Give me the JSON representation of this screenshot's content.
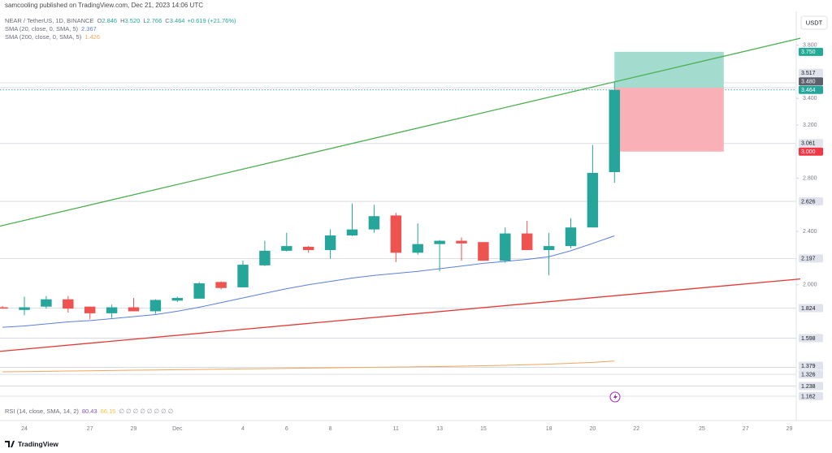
{
  "header": {
    "publisher": "samcooling published on TradingView.com, Dec 21, 2023 14:06 UTC"
  },
  "chart_data": {
    "type": "candlestick",
    "symbol": "NEAR / TetherUS, 1D, BINANCE",
    "readout": {
      "keys": [
        "O",
        "H",
        "L",
        "C"
      ],
      "texts": [
        "2.846",
        "3.520",
        "2.766",
        "3.464"
      ],
      "change": "+0.619 (+21.76%)"
    },
    "currency": "USDT",
    "categories": [
      null,
      "24",
      null,
      null,
      "27",
      null,
      "29",
      null,
      "Dec",
      null,
      null,
      "4",
      null,
      "6",
      null,
      "8",
      null,
      null,
      "11",
      null,
      "13",
      null,
      "15",
      null,
      null,
      "18",
      null,
      "20",
      null,
      "22",
      null,
      null,
      "25",
      null,
      "27",
      null,
      "29"
    ],
    "open": [
      1.83,
      1.81,
      1.835,
      1.89,
      1.835,
      1.785,
      1.83,
      1.8,
      1.88,
      1.895,
      2.02,
      1.98,
      2.145,
      2.255,
      2.285,
      2.26,
      2.37,
      2.415,
      2.52,
      2.24,
      2.305,
      2.33,
      2.32,
      2.18,
      2.385,
      2.26,
      2.29,
      2.43,
      2.846,
      null,
      null,
      null,
      null,
      null,
      null,
      null,
      null
    ],
    "high": [
      1.84,
      1.91,
      1.915,
      1.915,
      1.835,
      1.85,
      1.9,
      1.89,
      1.91,
      2.02,
      2.025,
      2.18,
      2.33,
      2.39,
      2.29,
      2.415,
      2.61,
      2.6,
      2.54,
      2.46,
      2.335,
      2.355,
      2.32,
      2.43,
      2.48,
      2.39,
      2.5,
      3.05,
      3.52,
      null,
      null,
      null,
      null,
      null,
      null,
      null,
      null
    ],
    "low": [
      1.82,
      1.77,
      1.82,
      1.79,
      1.74,
      1.75,
      1.8,
      1.78,
      1.87,
      1.895,
      1.965,
      1.98,
      2.14,
      2.25,
      2.24,
      2.195,
      2.365,
      2.39,
      2.17,
      2.225,
      2.1,
      2.18,
      2.18,
      2.165,
      2.26,
      2.07,
      2.275,
      2.43,
      2.766,
      null,
      null,
      null,
      null,
      null,
      null,
      null,
      null
    ],
    "close": [
      1.82,
      1.83,
      1.89,
      1.82,
      1.785,
      1.83,
      1.8,
      1.885,
      1.9,
      2.01,
      1.975,
      2.15,
      2.255,
      2.29,
      2.26,
      2.37,
      2.415,
      2.515,
      2.24,
      2.305,
      2.33,
      2.31,
      2.18,
      2.385,
      2.26,
      2.29,
      2.43,
      2.84,
      3.464,
      null,
      null,
      null,
      null,
      null,
      null,
      null,
      null
    ],
    "colors": {
      "up": "#26a69a",
      "down": "#ef5350"
    },
    "series": [
      {
        "name": "SMA (20, close, 0, SMA, 5)",
        "color": "#5b7fde",
        "last": 2.367,
        "values": [
          1.68,
          1.69,
          1.705,
          1.72,
          1.73,
          1.745,
          1.76,
          1.775,
          1.8,
          1.83,
          1.865,
          1.9,
          1.935,
          1.97,
          2.0,
          2.025,
          2.05,
          2.07,
          2.085,
          2.1,
          2.12,
          2.14,
          2.16,
          2.175,
          2.19,
          2.21,
          2.255,
          2.31,
          2.367,
          null,
          null,
          null,
          null,
          null,
          null,
          null,
          null
        ]
      },
      {
        "name": "SMA (200, close, 0, SMA, 5)",
        "color": "#f5a35a",
        "last": 1.426,
        "values": [
          1.345,
          1.347,
          1.349,
          1.351,
          1.353,
          1.355,
          1.357,
          1.359,
          1.361,
          1.363,
          1.365,
          1.367,
          1.369,
          1.371,
          1.373,
          1.375,
          1.377,
          1.379,
          1.381,
          1.383,
          1.385,
          1.388,
          1.391,
          1.394,
          1.398,
          1.403,
          1.409,
          1.416,
          1.426,
          null,
          null,
          null,
          null,
          null,
          null,
          null,
          null
        ]
      }
    ],
    "rsi": {
      "name": "RSI (14, close, SMA, 14, 2)",
      "values": [
        80.43,
        66.15
      ],
      "colors": [
        "#7e57c2",
        "#f5c242"
      ],
      "extra": "∅ ∅ ∅ ∅ ∅ ∅ ∅ ∅"
    },
    "ylim": [
      0.979,
      4.054
    ],
    "yticks": [
      {
        "value": 3.8,
        "label": "3.800"
      },
      {
        "value": 3.4,
        "label": "3.400"
      },
      {
        "value": 3.2,
        "label": "3.200"
      },
      {
        "value": 2.8,
        "label": "2.800"
      },
      {
        "value": 2.4,
        "label": "2.400"
      },
      {
        "value": 2.0,
        "label": "2.000"
      }
    ],
    "trendlines": [
      {
        "color": "#4caf50",
        "values": [
          2.44,
          3.852
        ]
      },
      {
        "color": "#e53935",
        "values": [
          1.499,
          2.043
        ]
      }
    ],
    "position": {
      "entry": 3.48,
      "target": 3.75,
      "stop": 3.0,
      "colors": [
        "#a3dccf",
        "#f9b0b6"
      ]
    },
    "price_labels": [
      {
        "value": 3.75,
        "label": "3.750",
        "bg": "#22ab94",
        "fg": "#ffffff",
        "line": "none"
      },
      {
        "value": 3.517,
        "label": "3.517",
        "bg": "#e0e3eb",
        "fg": "#131722",
        "line": "solid"
      },
      {
        "value": 3.48,
        "label": "3.480",
        "bg": "#5d606b",
        "fg": "#ffffff",
        "line": "solid"
      },
      {
        "value": 3.464,
        "label": "3.464",
        "bg": "#26a69a",
        "fg": "#ffffff",
        "line": "dotted"
      },
      {
        "value": 3.061,
        "label": "3.061",
        "bg": "#e0e3eb",
        "fg": "#131722",
        "line": "solid"
      },
      {
        "value": 3.0,
        "label": "3.000",
        "bg": "#f23645",
        "fg": "#ffffff",
        "line": "none"
      },
      {
        "value": 2.626,
        "label": "2.626",
        "bg": "#e0e3eb",
        "fg": "#131722",
        "line": "solid"
      },
      {
        "value": 2.197,
        "label": "2.197",
        "bg": "#e0e3eb",
        "fg": "#131722",
        "line": "solid"
      },
      {
        "value": 1.824,
        "label": "1.824",
        "bg": "#e0e3eb",
        "fg": "#131722",
        "line": "solid"
      },
      {
        "value": 1.598,
        "label": "1.598",
        "bg": "#e0e3eb",
        "fg": "#131722",
        "line": "solid"
      },
      {
        "value": 1.379,
        "label": "1.379",
        "bg": "#e0e3eb",
        "fg": "#131722",
        "line": "solid"
      },
      {
        "value": 1.326,
        "label": "1.326",
        "bg": "#e0e3eb",
        "fg": "#131722",
        "line": "solid"
      },
      {
        "value": 1.238,
        "label": "1.238",
        "bg": "#e0e3eb",
        "fg": "#131722",
        "line": "solid"
      },
      {
        "value": 1.162,
        "label": "1.162",
        "bg": "#e0e3eb",
        "fg": "#131722",
        "line": "solid"
      }
    ]
  },
  "footer": {
    "brand": "TradingView"
  }
}
